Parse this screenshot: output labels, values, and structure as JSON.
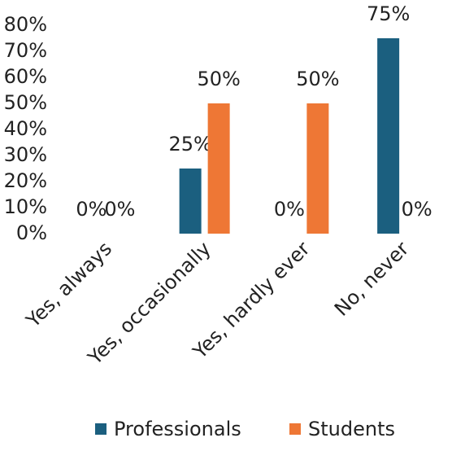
{
  "chart_data": {
    "type": "bar",
    "categories": [
      "Yes, always",
      "Yes, occasionally",
      "Yes, hardly ever",
      "No, never"
    ],
    "series": [
      {
        "name": "Professionals",
        "color": "#1b5f7f",
        "values": [
          0,
          25,
          0,
          75
        ],
        "value_labels": [
          "0%",
          "25%",
          "0%",
          "75%"
        ]
      },
      {
        "name": "Students",
        "color": "#ee7735",
        "values": [
          0,
          50,
          50,
          0
        ],
        "value_labels": [
          "0%",
          "50%",
          "50%",
          "0%"
        ]
      }
    ],
    "ylim": [
      0,
      80
    ],
    "yticks": [
      {
        "value": 0,
        "label": "0%"
      },
      {
        "value": 10,
        "label": "10%"
      },
      {
        "value": 20,
        "label": "20%"
      },
      {
        "value": 30,
        "label": "30%"
      },
      {
        "value": 40,
        "label": "40%"
      },
      {
        "value": 50,
        "label": "50%"
      },
      {
        "value": 60,
        "label": "60%"
      },
      {
        "value": 70,
        "label": "70%"
      },
      {
        "value": 80,
        "label": "80%"
      }
    ],
    "legend": "bottom"
  }
}
